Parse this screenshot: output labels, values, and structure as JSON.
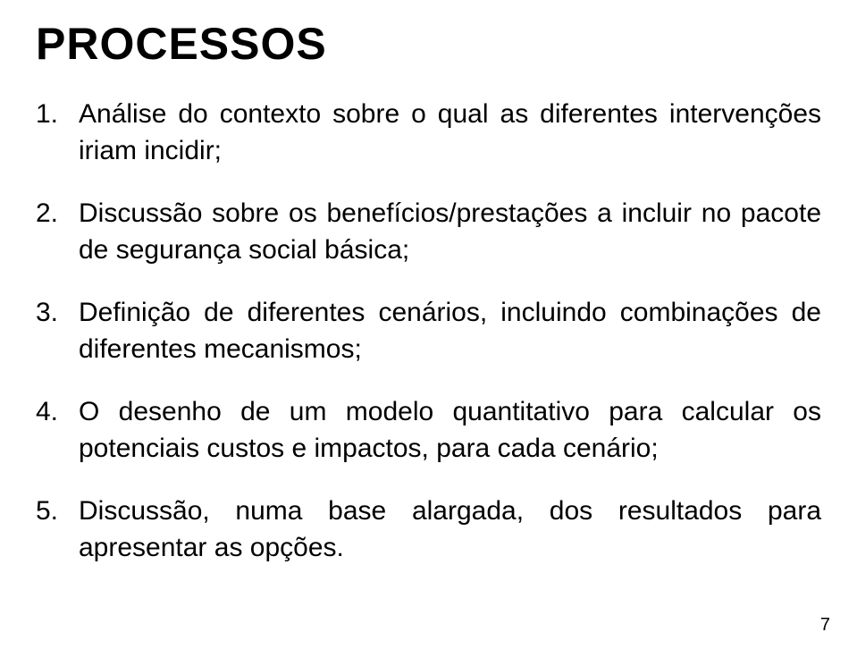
{
  "title": "PROCESSOS",
  "items": [
    {
      "number": "1.",
      "text": "Análise do contexto sobre o qual as diferentes intervenções iriam incidir;"
    },
    {
      "number": "2.",
      "text": "Discussão sobre os benefícios/prestações a incluir no pacote de segurança social básica;"
    },
    {
      "number": "3.",
      "text": "Definição de diferentes cenários, incluindo combinações de diferentes mecanismos;"
    },
    {
      "number": "4.",
      "text": "O desenho de um modelo quantitativo para calcular os potenciais custos e impactos, para cada cenário;"
    },
    {
      "number": "5.",
      "text": "Discussão, numa base alargada, dos resultados para apresentar as opções."
    }
  ],
  "pageNumber": "7",
  "style": {
    "backgroundColor": "#ffffff",
    "textColor": "#000000",
    "titleFontSize": 50,
    "bodyFontSize": 30,
    "titleFontWeight": "bold"
  }
}
